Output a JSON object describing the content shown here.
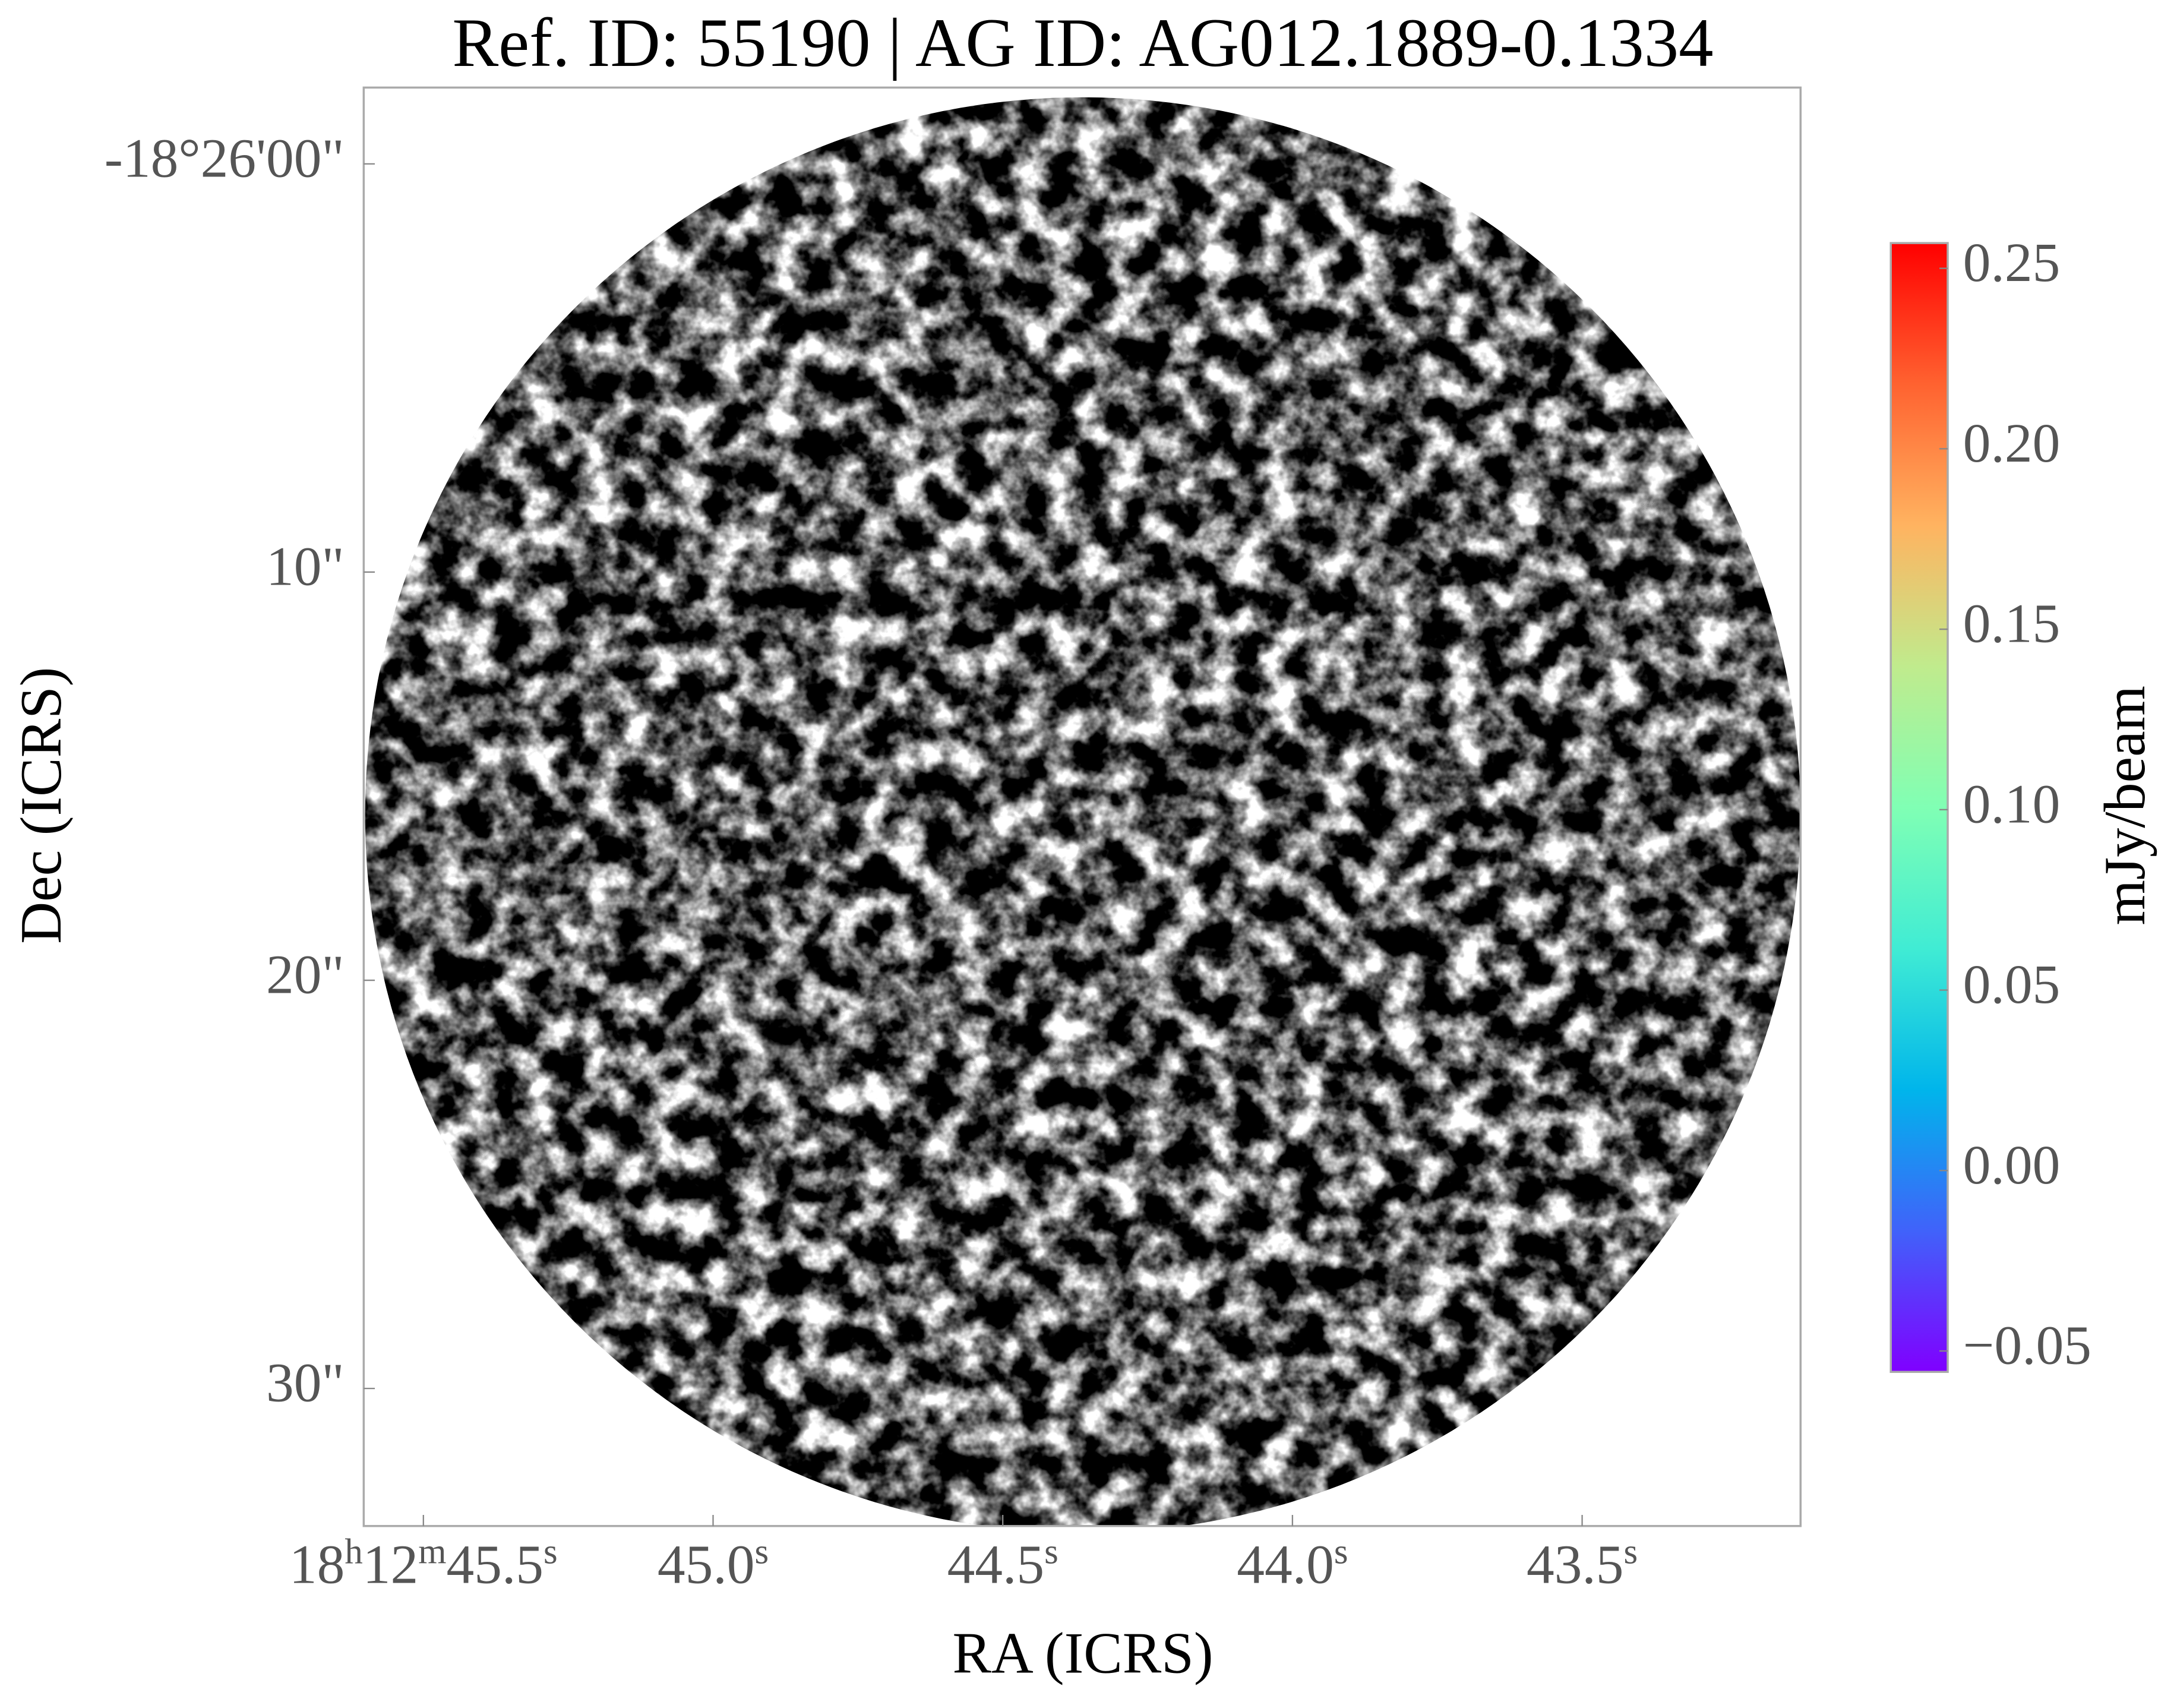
{
  "chart_data": {
    "type": "image",
    "title": "Ref. ID: 55190 | AG ID: AG012.1889-0.1334",
    "x_label": "RA (ICRS)",
    "y_label": "Dec (ICRS)",
    "colormap": "rainbow",
    "xlim": [
      45.603,
      43.123
    ],
    "xticks": [
      {
        "value": 45.5,
        "label": "18h12m45.5s"
      },
      {
        "value": 45.0,
        "label": "45.0s"
      },
      {
        "value": 44.5,
        "label": "44.5s"
      },
      {
        "value": 44.0,
        "label": "44.0s"
      },
      {
        "value": 43.5,
        "label": "43.5s"
      }
    ],
    "ylim": [
      -1.87,
      33.37
    ],
    "yticks": [
      {
        "value": 0,
        "label": "-18°26'00\""
      },
      {
        "value": 10,
        "label": "10\""
      },
      {
        "value": 20,
        "label": "20\""
      },
      {
        "value": 30,
        "label": "30\""
      }
    ],
    "colorbar": {
      "label": "mJy/beam",
      "lim": [
        -0.0558,
        0.257
      ],
      "ticks": [
        {
          "value": -0.05,
          "label": "−0.05"
        },
        {
          "value": 0,
          "label": "0.00"
        },
        0.05,
        {
          "value": 0.1,
          "label": "0.10"
        },
        0.15,
        {
          "value": 0.2,
          "label": "0.20"
        },
        0.25
      ]
    }
  }
}
